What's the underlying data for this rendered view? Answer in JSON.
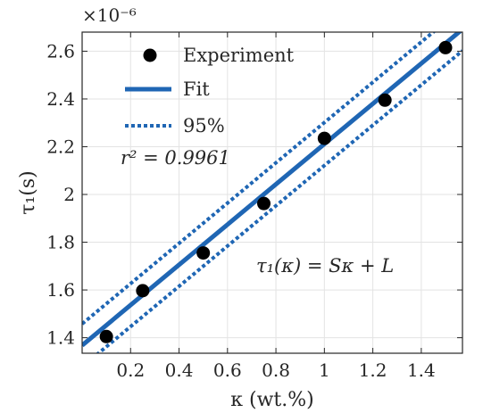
{
  "chart_data": {
    "type": "scatter",
    "title": "",
    "xlabel": "κ (wt.%)",
    "ylabel": "τ₁(s)",
    "y_multiplier_label": "×10⁻⁶",
    "xlim": [
      0,
      1.57
    ],
    "ylim": [
      1.335,
      2.68
    ],
    "xticks": [
      0.2,
      0.4,
      0.6,
      0.8,
      1,
      1.2,
      1.4
    ],
    "xtick_labels": [
      "0.2",
      "0.4",
      "0.6",
      "0.8",
      "1",
      "1.2",
      "1.4"
    ],
    "yticks": [
      1.4,
      1.6,
      1.8,
      2,
      2.2,
      2.4,
      2.6
    ],
    "ytick_labels": [
      "1.4",
      "1.6",
      "1.8",
      "2",
      "2.2",
      "2.4",
      "2.6"
    ],
    "grid": true,
    "legend_position": "top-left",
    "colors": {
      "fit": "#1f66b4",
      "points": "#000000",
      "grid": "#e3e3e3",
      "axis": "#262626"
    },
    "series": [
      {
        "name": "Experiment",
        "kind": "points",
        "x": [
          0.1,
          0.25,
          0.5,
          0.75,
          1.0,
          1.25,
          1.5
        ],
        "y": [
          1.405,
          1.597,
          1.755,
          1.962,
          2.235,
          2.395,
          2.615
        ]
      },
      {
        "name": "Fit",
        "kind": "line",
        "x": [
          0,
          1.57
        ],
        "y": [
          1.368,
          2.692
        ]
      },
      {
        "name": "95%",
        "kind": "dotted-band",
        "x": [
          0,
          1.57
        ],
        "upper": [
          1.458,
          2.782
        ],
        "lower": [
          1.278,
          2.602
        ]
      }
    ],
    "annotations": {
      "r_squared": "r² = 0.9961",
      "equation": "τ₁(κ) = Sκ + L"
    }
  }
}
